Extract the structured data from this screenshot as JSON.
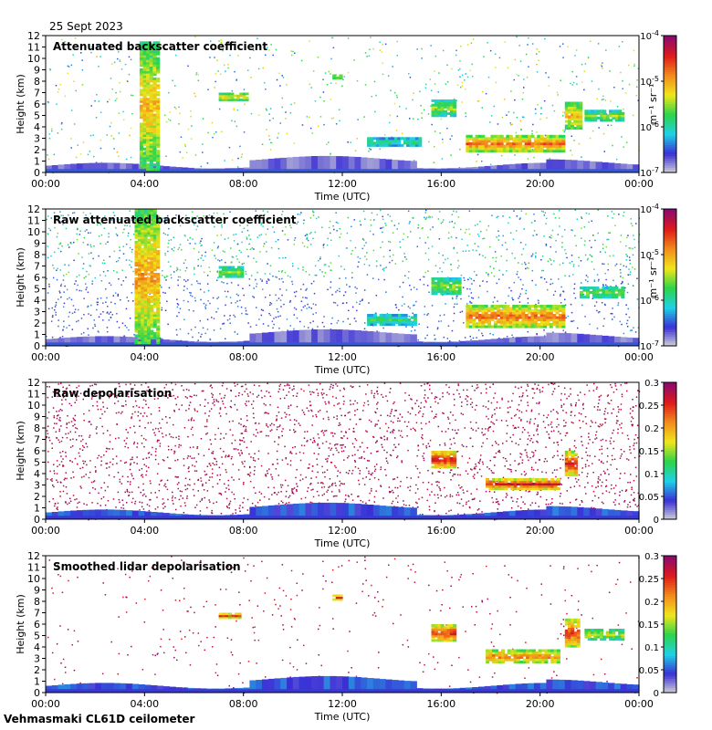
{
  "date": "25 Sept 2023",
  "footer": "Vehmasmaki CL61D ceilometer",
  "colors": {
    "low": "#d7d7d7",
    "blue": "#3a2fd6",
    "cyan": "#1fd2e6",
    "green": "#2cd44a",
    "yellow": "#f0e61a",
    "orange": "#f28c1c",
    "red": "#e01a1a",
    "purple": "#8a0a6e"
  },
  "chart_data": [
    {
      "type": "heatmap",
      "title": "Attenuated backscatter coefficient",
      "xlabel": "Time (UTC)",
      "ylabel": "Height (km)",
      "x_ticks": [
        "00:00",
        "04:00",
        "08:00",
        "12:00",
        "16:00",
        "20:00",
        "00:00"
      ],
      "y_ticks": [
        "0",
        "1",
        "2",
        "3",
        "4",
        "5",
        "6",
        "7",
        "8",
        "9",
        "10",
        "11",
        "12"
      ],
      "ylim": [
        0,
        12
      ],
      "colorbar": {
        "scale": "log",
        "labels": [
          "10^-4",
          "10^-5",
          "10^-6",
          "10^-7"
        ],
        "unit": "m^-1 sr^-1"
      },
      "features": [
        {
          "name": "rain-shaft",
          "t0": 3.8,
          "t1": 4.6,
          "h0": 0.2,
          "h1": 11.5,
          "level": 0.65
        },
        {
          "name": "cloud",
          "t0": 7.0,
          "t1": 8.2,
          "h0": 6.3,
          "h1": 7.0,
          "level": 0.7
        },
        {
          "name": "cloud",
          "t0": 11.6,
          "t1": 12.0,
          "h0": 8.2,
          "h1": 8.6,
          "level": 0.75
        },
        {
          "name": "cloud",
          "t0": 13.0,
          "t1": 15.2,
          "h0": 2.3,
          "h1": 3.1,
          "level": 0.45
        },
        {
          "name": "cloud",
          "t0": 15.6,
          "t1": 16.6,
          "h0": 4.9,
          "h1": 6.4,
          "level": 0.55
        },
        {
          "name": "cloud",
          "t0": 17.0,
          "t1": 21.0,
          "h0": 1.8,
          "h1": 3.3,
          "level": 0.8
        },
        {
          "name": "cloud",
          "t0": 21.0,
          "t1": 21.7,
          "h0": 3.8,
          "h1": 6.2,
          "level": 0.7
        },
        {
          "name": "cloud",
          "t0": 21.8,
          "t1": 23.4,
          "h0": 4.5,
          "h1": 5.5,
          "level": 0.55
        }
      ]
    },
    {
      "type": "heatmap",
      "title": "Raw attenuated backscatter coefficient",
      "xlabel": "Time (UTC)",
      "ylabel": "Height (km)",
      "x_ticks": [
        "00:00",
        "04:00",
        "08:00",
        "12:00",
        "16:00",
        "20:00",
        "00:00"
      ],
      "y_ticks": [
        "0",
        "1",
        "2",
        "3",
        "4",
        "5",
        "6",
        "7",
        "8",
        "9",
        "10",
        "11",
        "12"
      ],
      "ylim": [
        0,
        12
      ],
      "colorbar": {
        "scale": "log",
        "labels": [
          "10^-4",
          "10^-5",
          "10^-6",
          "10^-7"
        ],
        "unit": "m^-1 sr^-1"
      },
      "features": [
        {
          "name": "rain-shaft",
          "t0": 3.6,
          "t1": 4.6,
          "h0": 0.2,
          "h1": 12,
          "level": 0.7
        },
        {
          "name": "cloud",
          "t0": 7.0,
          "t1": 8.0,
          "h0": 6.0,
          "h1": 7.0,
          "level": 0.55
        },
        {
          "name": "cloud",
          "t0": 13.0,
          "t1": 15.0,
          "h0": 1.8,
          "h1": 2.8,
          "level": 0.45
        },
        {
          "name": "cloud",
          "t0": 15.6,
          "t1": 16.8,
          "h0": 4.5,
          "h1": 6.0,
          "level": 0.55
        },
        {
          "name": "cloud",
          "t0": 17.0,
          "t1": 21.0,
          "h0": 1.6,
          "h1": 3.6,
          "level": 0.8
        },
        {
          "name": "cloud",
          "t0": 21.6,
          "t1": 23.4,
          "h0": 4.2,
          "h1": 5.2,
          "level": 0.55
        }
      ]
    },
    {
      "type": "heatmap",
      "title": "Raw depolarisation",
      "xlabel": "Time (UTC)",
      "ylabel": "Height (km)",
      "x_ticks": [
        "00:00",
        "04:00",
        "08:00",
        "12:00",
        "16:00",
        "20:00",
        "00:00"
      ],
      "y_ticks": [
        "0",
        "1",
        "2",
        "3",
        "4",
        "5",
        "6",
        "7",
        "8",
        "9",
        "10",
        "11",
        "12"
      ],
      "ylim": [
        0,
        12
      ],
      "colorbar": {
        "scale": "linear",
        "labels": [
          "0.3",
          "0.25",
          "0.2",
          "0.15",
          "0.1",
          "0.05",
          "0"
        ]
      },
      "features": [
        {
          "name": "cloud",
          "t0": 15.6,
          "t1": 16.6,
          "h0": 4.5,
          "h1": 6.0,
          "level": 0.95
        },
        {
          "name": "cloud",
          "t0": 17.8,
          "t1": 20.8,
          "h0": 2.6,
          "h1": 3.6,
          "level": 0.95
        },
        {
          "name": "cloud",
          "t0": 21.0,
          "t1": 21.5,
          "h0": 3.8,
          "h1": 6.0,
          "level": 0.9
        }
      ]
    },
    {
      "type": "heatmap",
      "title": "Smoothed lidar depolarisation",
      "xlabel": "Time (UTC)",
      "ylabel": "Height (km)",
      "x_ticks": [
        "00:00",
        "04:00",
        "08:00",
        "12:00",
        "16:00",
        "20:00",
        "00:00"
      ],
      "y_ticks": [
        "0",
        "1",
        "2",
        "3",
        "4",
        "5",
        "6",
        "7",
        "8",
        "9",
        "10",
        "11",
        "12"
      ],
      "ylim": [
        0,
        12
      ],
      "colorbar": {
        "scale": "linear",
        "labels": [
          "0.3",
          "0.25",
          "0.2",
          "0.15",
          "0.1",
          "0.05",
          "0"
        ]
      },
      "features": [
        {
          "name": "cloud",
          "t0": 7.0,
          "t1": 7.9,
          "h0": 6.5,
          "h1": 7.0,
          "level": 0.95
        },
        {
          "name": "cloud",
          "t0": 11.6,
          "t1": 12.0,
          "h0": 8.1,
          "h1": 8.6,
          "level": 0.95
        },
        {
          "name": "cloud",
          "t0": 15.6,
          "t1": 16.6,
          "h0": 4.5,
          "h1": 6.0,
          "level": 0.9
        },
        {
          "name": "cloud",
          "t0": 17.8,
          "t1": 20.8,
          "h0": 2.6,
          "h1": 3.8,
          "level": 0.8
        },
        {
          "name": "cloud",
          "t0": 21.0,
          "t1": 21.6,
          "h0": 4.0,
          "h1": 6.5,
          "level": 0.85
        },
        {
          "name": "cloud",
          "t0": 21.8,
          "t1": 23.4,
          "h0": 4.6,
          "h1": 5.6,
          "level": 0.6
        }
      ]
    }
  ]
}
